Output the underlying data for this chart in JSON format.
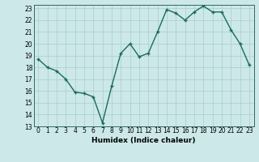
{
  "x": [
    0,
    1,
    2,
    3,
    4,
    5,
    6,
    7,
    8,
    9,
    10,
    11,
    12,
    13,
    14,
    15,
    16,
    17,
    18,
    19,
    20,
    21,
    22,
    23
  ],
  "y": [
    18.7,
    18.0,
    17.7,
    17.0,
    15.9,
    15.8,
    15.5,
    13.3,
    16.4,
    19.2,
    20.0,
    18.9,
    19.2,
    21.0,
    22.9,
    22.6,
    22.0,
    22.7,
    23.2,
    22.7,
    22.7,
    21.2,
    20.0,
    18.2
  ],
  "line_color": "#1a6b5a",
  "marker": "+",
  "marker_size": 3.5,
  "marker_linewidth": 1.0,
  "xlabel": "Humidex (Indice chaleur)",
  "ylim_min": 13,
  "ylim_max": 23,
  "xlim_min": -0.5,
  "xlim_max": 23.5,
  "yticks": [
    13,
    14,
    15,
    16,
    17,
    18,
    19,
    20,
    21,
    22,
    23
  ],
  "xticks": [
    0,
    1,
    2,
    3,
    4,
    5,
    6,
    7,
    8,
    9,
    10,
    11,
    12,
    13,
    14,
    15,
    16,
    17,
    18,
    19,
    20,
    21,
    22,
    23
  ],
  "background_color": "#cce8e8",
  "grid_color": "#aacccc",
  "linewidth": 1.0,
  "tick_fontsize": 5.5,
  "xlabel_fontsize": 6.5
}
